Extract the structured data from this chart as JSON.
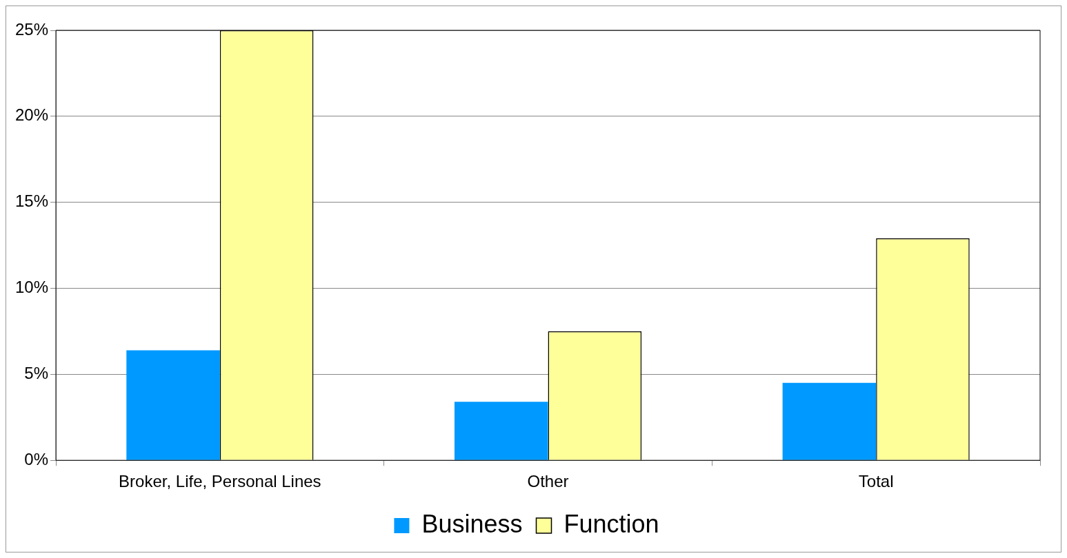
{
  "chart_data": {
    "type": "bar",
    "categories": [
      "Broker, Life, Personal Lines",
      "Other",
      "Total"
    ],
    "series": [
      {
        "name": "Business",
        "color": "#0099ff",
        "values": [
          6.4,
          3.4,
          4.5
        ]
      },
      {
        "name": "Function",
        "color": "#ffff99",
        "values": [
          25,
          7.5,
          12.9
        ]
      }
    ],
    "ylim": [
      0,
      25
    ],
    "yticks": [
      {
        "value": 0,
        "label": "0%"
      },
      {
        "value": 5,
        "label": "5%"
      },
      {
        "value": 10,
        "label": "10%"
      },
      {
        "value": 15,
        "label": "15%"
      },
      {
        "value": 20,
        "label": "20%"
      },
      {
        "value": 25,
        "label": "25%"
      }
    ],
    "grid": "y",
    "legend": "bottom"
  }
}
